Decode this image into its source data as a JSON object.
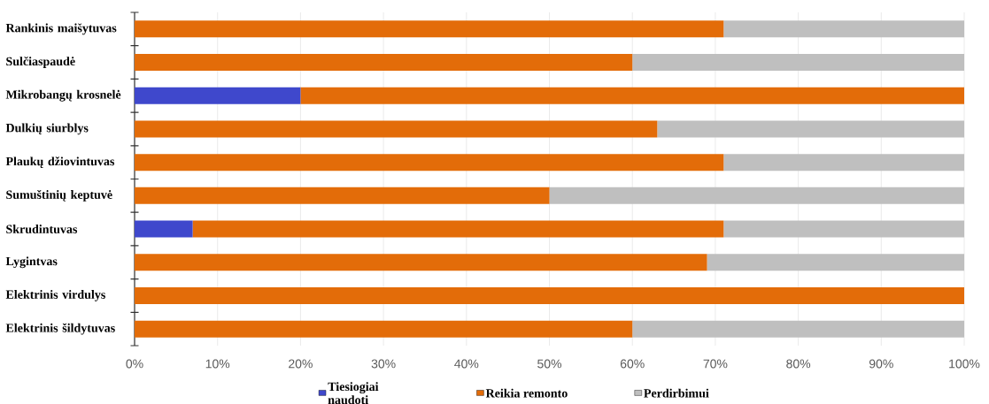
{
  "chart_data": {
    "type": "bar",
    "orientation": "horizontal",
    "stacked": true,
    "categories": [
      "Rankinis maišytuvas",
      "Sulčiaspaudė",
      "Mikrobangų krosnelė",
      "Dulkių siurblys",
      "Plaukų džiovintuvas",
      "Sumuštinių keptuvė",
      "Skrudintuvas",
      "Lygintvas",
      "Elektrinis virdulys",
      "Elektrinis šildytuvas"
    ],
    "series": [
      {
        "name": "Tiesiogiai naudoti",
        "color": "#3f48cc",
        "values": [
          0,
          0,
          20,
          0,
          0,
          0,
          7,
          0,
          0,
          0
        ]
      },
      {
        "name": "Reikia remonto",
        "color": "#e36c09",
        "values": [
          71,
          60,
          80,
          63,
          71,
          50,
          64,
          69,
          100,
          60
        ]
      },
      {
        "name": "Perdirbimui",
        "color": "#bfbfbf",
        "values": [
          29,
          40,
          0,
          37,
          29,
          50,
          29,
          31,
          0,
          40
        ]
      }
    ],
    "xlim": [
      0,
      100
    ],
    "xticks": [
      {
        "value": 0,
        "label": "0%"
      },
      {
        "value": 10,
        "label": "10%"
      },
      {
        "value": 20,
        "label": "20%"
      },
      {
        "value": 30,
        "label": "30%"
      },
      {
        "value": 40,
        "label": "40%"
      },
      {
        "value": 50,
        "label": "50%"
      },
      {
        "value": 60,
        "label": "60%"
      },
      {
        "value": 70,
        "label": "70%"
      },
      {
        "value": 80,
        "label": "80%"
      },
      {
        "value": 90,
        "label": "90%"
      },
      {
        "value": 100,
        "label": "100%"
      }
    ],
    "grid": "x",
    "legend": "bottom"
  }
}
